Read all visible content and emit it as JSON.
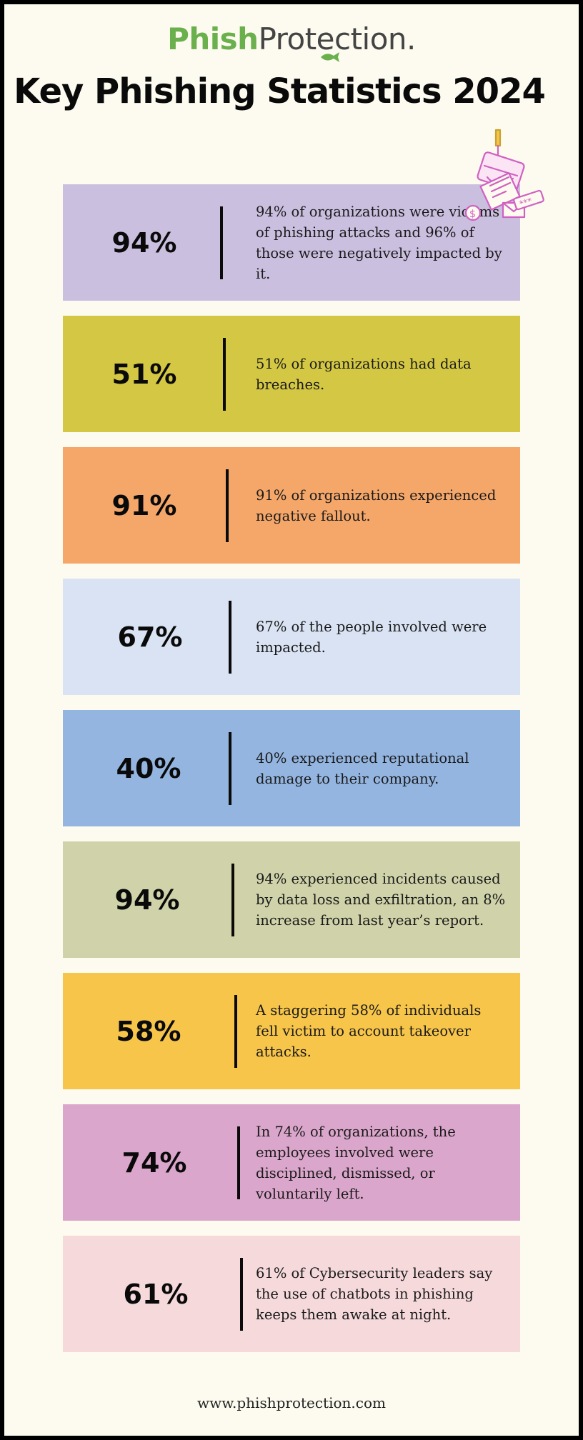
{
  "logo": {
    "part1": "Phish",
    "part2": "Protection."
  },
  "title": "Key Phishing Statistics 2024",
  "colors": {
    "background": "#fdfbef",
    "logo_green": "#6ab04c",
    "card_1": "#cbbfe0",
    "card_2": "#d3c744",
    "card_3": "#f5a76a",
    "card_4": "#d9e3f3",
    "card_5": "#93b5e0",
    "card_6": "#d0d3a9",
    "card_7": "#f7c54a",
    "card_8": "#dba6cb",
    "card_9": "#f5d9db",
    "deco_pink": "#d061c2"
  },
  "decoration_icon": "phishing-hook-credit-card-icon",
  "stats": [
    {
      "percent": "94%",
      "text": "94% of organizations were victims of phishing attacks and 96% of those were negatively impacted by it."
    },
    {
      "percent": "51%",
      "text": "51% of organizations had data breaches."
    },
    {
      "percent": "91%",
      "text": "91% of organizations experienced negative fallout."
    },
    {
      "percent": "67%",
      "text": "67% of the people involved were impacted."
    },
    {
      "percent": "40%",
      "text": "40% experienced reputational damage to their company."
    },
    {
      "percent": "94%",
      "text": "94% experienced incidents caused by data loss and exfiltration, an 8% increase from last year’s report."
    },
    {
      "percent": "58%",
      "text": "A staggering 58% of individuals fell victim to account takeover attacks."
    },
    {
      "percent": "74%",
      "text": "In 74% of organizations, the employees involved were disciplined, dismissed, or voluntarily left."
    },
    {
      "percent": "61%",
      "text": "61% of Cybersecurity leaders say the use of chatbots in phishing keeps them awake at night."
    }
  ],
  "footer": "www.phishprotection.com"
}
